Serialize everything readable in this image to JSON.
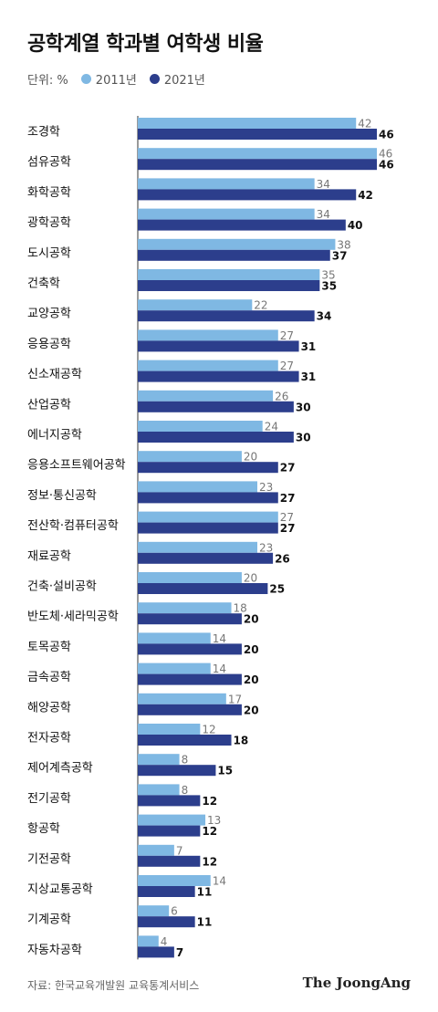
{
  "header": {
    "title": "공학계열 학과별 여학생 비율"
  },
  "legend": {
    "unit": "단위: %",
    "series_2011": "2011년",
    "series_2021": "2021년"
  },
  "colors": {
    "s2011": "#7fb8e3",
    "s2021": "#2c3e8c"
  },
  "footer": {
    "source": "자료: 한국교육개발원 교육통계서비스",
    "brand": "The JoongAng"
  },
  "chart_data": {
    "type": "bar",
    "orientation": "horizontal",
    "title": "공학계열 학과별 여학생 비율",
    "unit": "%",
    "categories": [
      "조경학",
      "섬유공학",
      "화학공학",
      "광학공학",
      "도시공학",
      "건축학",
      "교양공학",
      "응용공학",
      "신소재공학",
      "산업공학",
      "에너지공학",
      "응용소프트웨어공학",
      "정보·통신공학",
      "전산학·컴퓨터공학",
      "재료공학",
      "건축·설비공학",
      "반도체·세라믹공학",
      "토목공학",
      "금속공학",
      "해양공학",
      "전자공학",
      "제어계측공학",
      "전기공학",
      "항공학",
      "기전공학",
      "지상교통공학",
      "기계공학",
      "자동차공학"
    ],
    "series": [
      {
        "name": "2011년",
        "values": [
          42,
          46,
          34,
          34,
          38,
          35,
          22,
          27,
          27,
          26,
          24,
          20,
          23,
          27,
          23,
          20,
          18,
          14,
          14,
          17,
          12,
          8,
          8,
          13,
          7,
          14,
          6,
          4
        ]
      },
      {
        "name": "2021년",
        "values": [
          46,
          46,
          42,
          40,
          37,
          35,
          34,
          31,
          31,
          30,
          30,
          27,
          27,
          27,
          26,
          25,
          20,
          20,
          20,
          20,
          18,
          15,
          12,
          12,
          12,
          11,
          11,
          7
        ]
      }
    ],
    "xlim": [
      0,
      46
    ],
    "grid": false,
    "legend_position": "top-left"
  }
}
